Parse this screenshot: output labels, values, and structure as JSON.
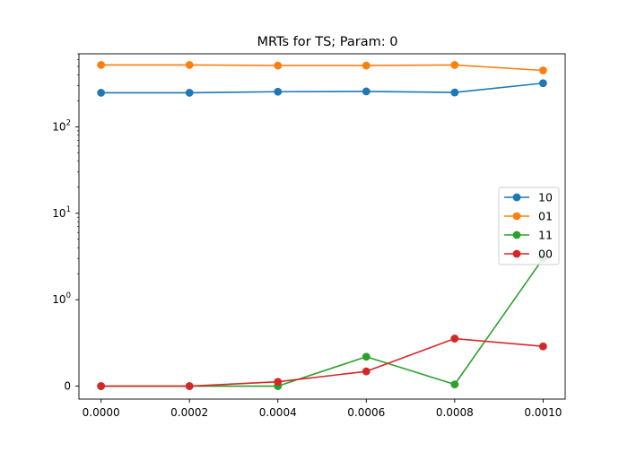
{
  "chart_data": {
    "type": "line",
    "title": "MRTs for TS; Param: 0",
    "xlabel": "",
    "ylabel": "",
    "xscale": "linear",
    "yscale": "symlog",
    "x": [
      0.0,
      0.0002,
      0.0004,
      0.0006,
      0.0008,
      0.001
    ],
    "x_tick_labels": [
      "0.0000",
      "0.0002",
      "0.0004",
      "0.0006",
      "0.0008",
      "0.0010"
    ],
    "y_ticks": [
      {
        "value": 0,
        "label": "0",
        "exp": ""
      },
      {
        "value": 1,
        "label": "10",
        "exp": "0"
      },
      {
        "value": 10,
        "label": "10",
        "exp": "1"
      },
      {
        "value": 100,
        "label": "10",
        "exp": "2"
      }
    ],
    "xlim": [
      -5e-05,
      0.00105
    ],
    "ylim": [
      -0.15,
      700
    ],
    "series": [
      {
        "name": "10",
        "color": "#1f77b4",
        "values": [
          248,
          248,
          255,
          257,
          250,
          320
        ]
      },
      {
        "name": "01",
        "color": "#ff7f0e",
        "values": [
          520,
          520,
          512,
          512,
          520,
          450
        ]
      },
      {
        "name": "11",
        "color": "#2ca02c",
        "values": [
          0.0,
          0.0,
          0.0,
          0.34,
          0.02,
          3.0
        ]
      },
      {
        "name": "00",
        "color": "#d62728",
        "values": [
          0.0,
          0.0,
          0.05,
          0.17,
          0.55,
          0.46
        ]
      }
    ],
    "legend_position": "center-right",
    "grid": false
  }
}
